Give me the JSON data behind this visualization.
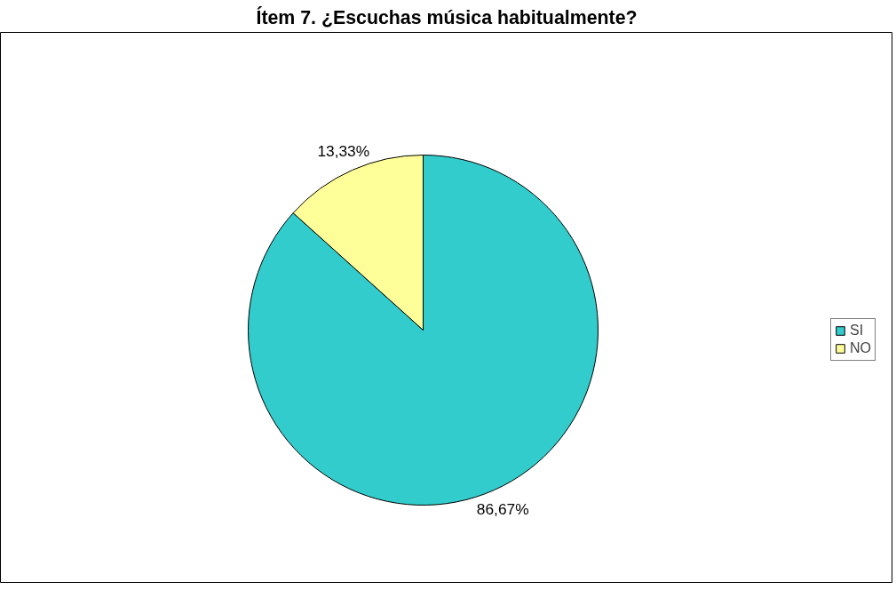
{
  "chart_data": {
    "type": "pie",
    "title": "Ítem 7. ¿Escuchas música habitualmente?",
    "categories": [
      "SI",
      "NO"
    ],
    "values": [
      86.67,
      13.33
    ],
    "colors": [
      "#33cccc",
      "#ffff99"
    ],
    "value_labels": [
      "86,67%",
      "13,33%"
    ],
    "legend": "right"
  }
}
